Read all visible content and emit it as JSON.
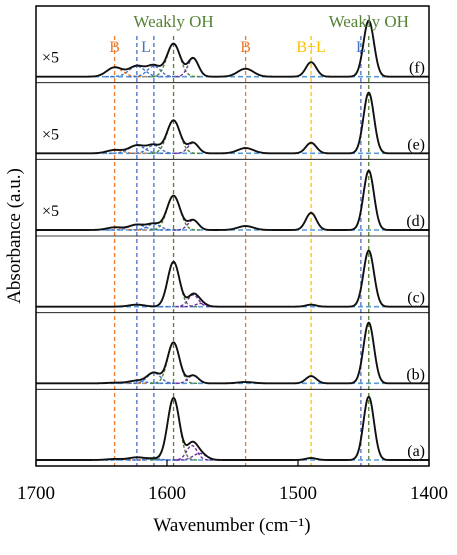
{
  "chart_data": {
    "type": "line",
    "title": "",
    "xlabel": "Wavenumber (cm⁻¹)",
    "ylabel": "Absorbance (a.u.)",
    "xlim": [
      1700,
      1400
    ],
    "x_reversed": true,
    "x_ticks": [
      1700,
      1600,
      1500,
      1400
    ],
    "grid": false,
    "colors": {
      "black_curve": "#111111",
      "B": "#ed7d31",
      "L": "#4472c4",
      "BL": "#ffc000",
      "OH": "#548235",
      "purple_fit": "#7030a0",
      "baseline": "#5b9bd5"
    },
    "reference_lines": [
      {
        "label": "B",
        "x": 1640,
        "color_key": "B"
      },
      {
        "label": "L",
        "x": 1623,
        "color_key": "L"
      },
      {
        "label": "L",
        "x": 1610,
        "color_key": "L"
      },
      {
        "label": "Weakly OH",
        "x": 1595,
        "color_key": "OH"
      },
      {
        "label": "B",
        "x": 1540,
        "color_key": "B"
      },
      {
        "label": "B+L",
        "x": 1490,
        "color_key": "BL"
      },
      {
        "label": "L",
        "x": 1452,
        "color_key": "L"
      },
      {
        "label": "Weakly OH",
        "x": 1446,
        "color_key": "OH"
      }
    ],
    "top_labels": [
      {
        "text": "Weakly OH",
        "x": 1595,
        "color_key": "OH"
      },
      {
        "text": "Weakly OH",
        "x": 1446,
        "color_key": "OH"
      },
      {
        "text": "B",
        "x": 1640,
        "color_key": "B"
      },
      {
        "text": "L",
        "x": 1616,
        "color_key": "L"
      },
      {
        "text": "B",
        "x": 1540,
        "color_key": "B"
      },
      {
        "text": "B+L",
        "x": 1490,
        "color_key": "BL"
      },
      {
        "text": "L",
        "x": 1452,
        "color_key": "L"
      }
    ],
    "series": [
      {
        "name": "(a)",
        "multiplier": "",
        "band_fraction": 1.0,
        "peaks": [
          {
            "x": 1640,
            "h": 0.015,
            "w": 6,
            "color_key": "B"
          },
          {
            "x": 1623,
            "h": 0.04,
            "w": 6,
            "color_key": "L"
          },
          {
            "x": 1610,
            "h": 0.02,
            "w": 5,
            "color_key": "L"
          },
          {
            "x": 1595,
            "h": 0.94,
            "w": 4.5,
            "color_key": "OH"
          },
          {
            "x": 1581,
            "h": 0.22,
            "w": 4,
            "color_key": "purple_fit"
          },
          {
            "x": 1575,
            "h": 0.1,
            "w": 5,
            "color_key": "purple_fit"
          },
          {
            "x": 1490,
            "h": 0.03,
            "w": 4,
            "color_key": "BL"
          },
          {
            "x": 1446,
            "h": 0.96,
            "w": 4,
            "color_key": "OH"
          }
        ]
      },
      {
        "name": "(b)",
        "multiplier": "",
        "band_fraction": 1.0,
        "peaks": [
          {
            "x": 1640,
            "h": 0.01,
            "w": 6,
            "color_key": "B"
          },
          {
            "x": 1623,
            "h": 0.04,
            "w": 6,
            "color_key": "L"
          },
          {
            "x": 1610,
            "h": 0.16,
            "w": 5,
            "color_key": "L"
          },
          {
            "x": 1595,
            "h": 0.62,
            "w": 4.5,
            "color_key": "OH"
          },
          {
            "x": 1580,
            "h": 0.12,
            "w": 4,
            "color_key": "purple_fit"
          },
          {
            "x": 1540,
            "h": 0.02,
            "w": 6,
            "color_key": "B"
          },
          {
            "x": 1490,
            "h": 0.11,
            "w": 4,
            "color_key": "BL"
          },
          {
            "x": 1446,
            "h": 0.92,
            "w": 4,
            "color_key": "OH"
          }
        ]
      },
      {
        "name": "(c)",
        "multiplier": "",
        "band_fraction": 1.0,
        "peaks": [
          {
            "x": 1623,
            "h": 0.03,
            "w": 6,
            "color_key": "L"
          },
          {
            "x": 1595,
            "h": 0.68,
            "w": 4.5,
            "color_key": "OH"
          },
          {
            "x": 1580,
            "h": 0.18,
            "w": 4,
            "color_key": "purple_fit"
          },
          {
            "x": 1574,
            "h": 0.05,
            "w": 4,
            "color_key": "purple_fit"
          },
          {
            "x": 1490,
            "h": 0.03,
            "w": 4,
            "color_key": "BL"
          },
          {
            "x": 1446,
            "h": 0.85,
            "w": 4,
            "color_key": "OH"
          }
        ]
      },
      {
        "name": "(d)",
        "multiplier": "×5",
        "band_fraction": 1.0,
        "peaks": [
          {
            "x": 1640,
            "h": 0.04,
            "w": 6,
            "color_key": "B"
          },
          {
            "x": 1623,
            "h": 0.08,
            "w": 6,
            "color_key": "L"
          },
          {
            "x": 1610,
            "h": 0.09,
            "w": 5,
            "color_key": "L"
          },
          {
            "x": 1595,
            "h": 0.52,
            "w": 5,
            "color_key": "OH"
          },
          {
            "x": 1580,
            "h": 0.15,
            "w": 4,
            "color_key": "purple_fit"
          },
          {
            "x": 1540,
            "h": 0.06,
            "w": 6,
            "color_key": "B"
          },
          {
            "x": 1490,
            "h": 0.26,
            "w": 4,
            "color_key": "BL"
          },
          {
            "x": 1446,
            "h": 0.9,
            "w": 4,
            "color_key": "OH"
          }
        ]
      },
      {
        "name": "(e)",
        "multiplier": "×5",
        "band_fraction": 1.0,
        "peaks": [
          {
            "x": 1640,
            "h": 0.05,
            "w": 6,
            "color_key": "B"
          },
          {
            "x": 1623,
            "h": 0.12,
            "w": 6,
            "color_key": "L"
          },
          {
            "x": 1610,
            "h": 0.12,
            "w": 5,
            "color_key": "L"
          },
          {
            "x": 1595,
            "h": 0.5,
            "w": 5,
            "color_key": "OH"
          },
          {
            "x": 1580,
            "h": 0.16,
            "w": 4,
            "color_key": "purple_fit"
          },
          {
            "x": 1540,
            "h": 0.08,
            "w": 6,
            "color_key": "B"
          },
          {
            "x": 1490,
            "h": 0.16,
            "w": 4,
            "color_key": "BL"
          },
          {
            "x": 1446,
            "h": 0.92,
            "w": 4,
            "color_key": "OH"
          }
        ]
      },
      {
        "name": "(f)",
        "multiplier": "×5",
        "band_fraction": 1.0,
        "peaks": [
          {
            "x": 1640,
            "h": 0.14,
            "w": 6,
            "color_key": "B"
          },
          {
            "x": 1623,
            "h": 0.16,
            "w": 6,
            "color_key": "L"
          },
          {
            "x": 1610,
            "h": 0.16,
            "w": 5,
            "color_key": "L"
          },
          {
            "x": 1595,
            "h": 0.5,
            "w": 5,
            "color_key": "OH"
          },
          {
            "x": 1580,
            "h": 0.28,
            "w": 4,
            "color_key": "purple_fit"
          },
          {
            "x": 1540,
            "h": 0.12,
            "w": 6,
            "color_key": "B"
          },
          {
            "x": 1490,
            "h": 0.22,
            "w": 4,
            "color_key": "BL"
          },
          {
            "x": 1446,
            "h": 0.85,
            "w": 4,
            "color_key": "OH"
          }
        ]
      }
    ]
  }
}
